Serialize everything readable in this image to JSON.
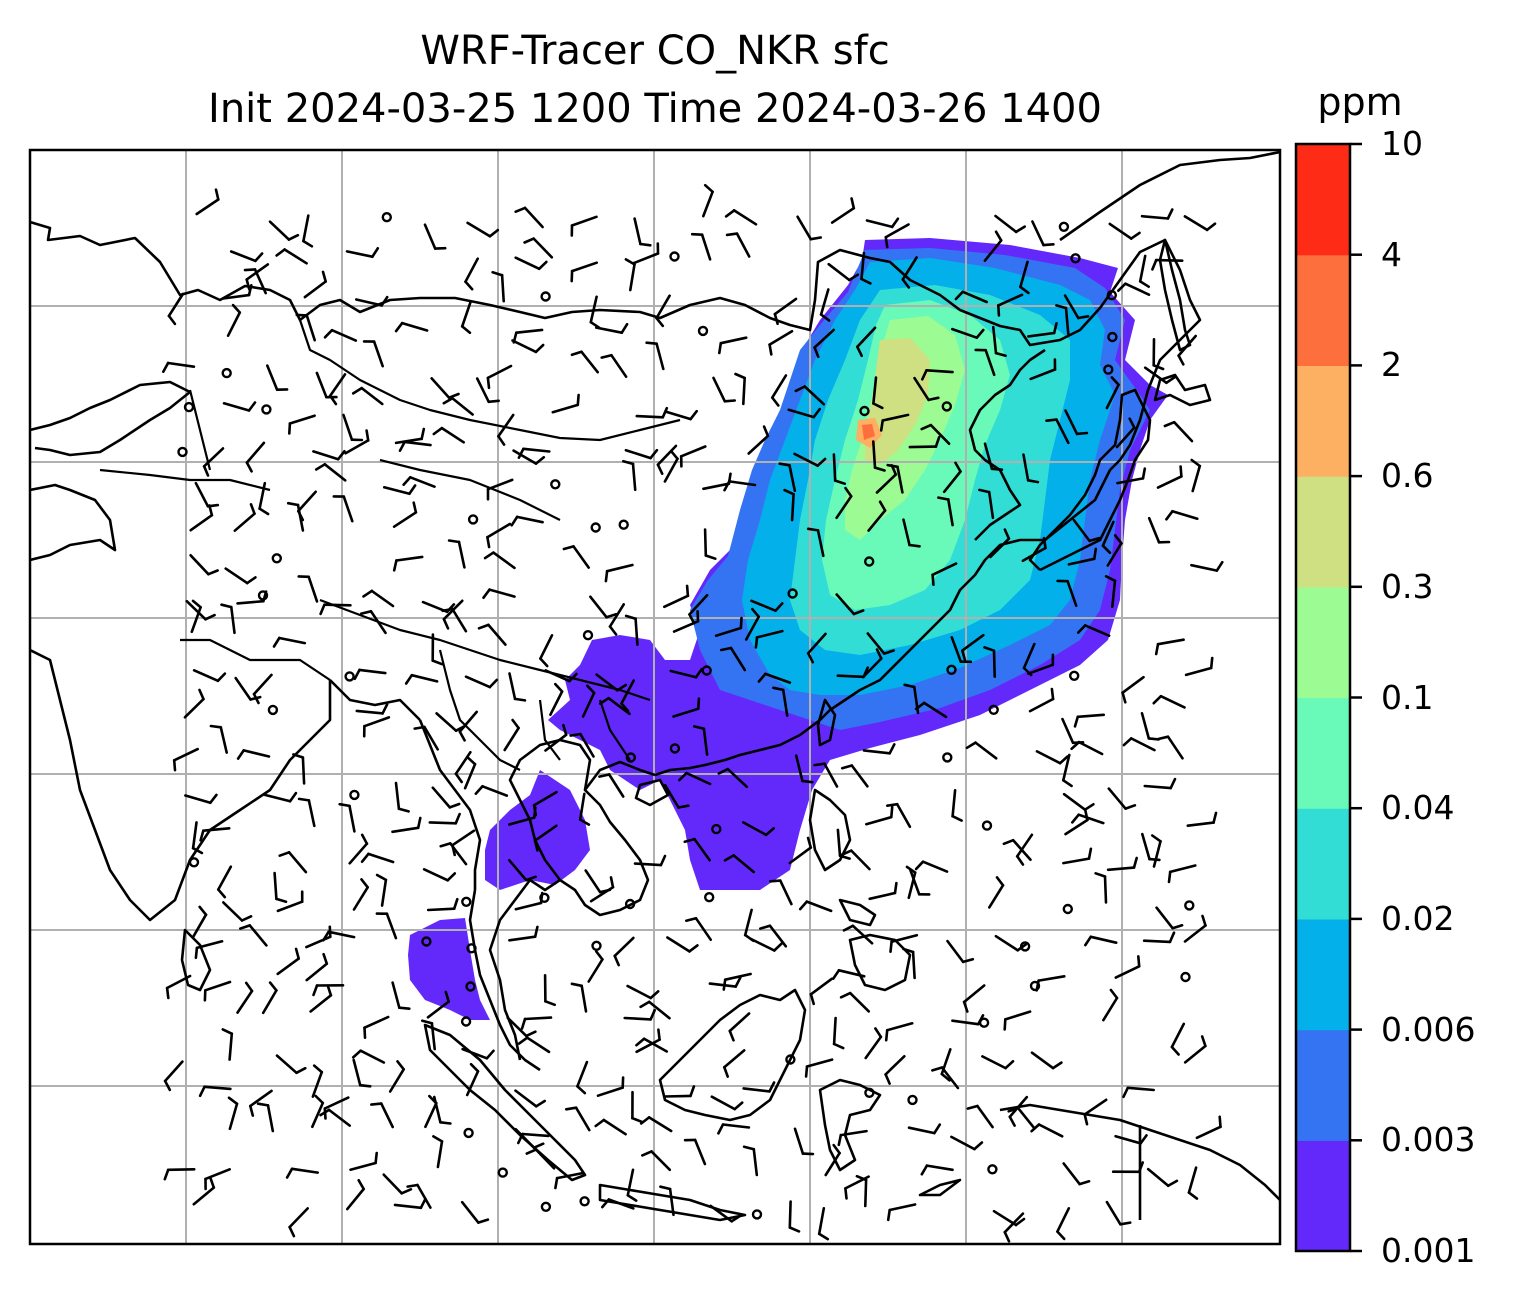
{
  "title": {
    "line1": "WRF-Tracer CO_NKR sfc",
    "line2": "Init 2024-03-25 1200 Time 2024-03-26 1400"
  },
  "colorbar": {
    "unit": "ppm",
    "levels": [
      "0.001",
      "0.003",
      "0.006",
      "0.02",
      "0.04",
      "0.1",
      "0.3",
      "0.6",
      "2",
      "4",
      "10"
    ],
    "colors": [
      "#6329fb",
      "#3474f3",
      "#04b0ea",
      "#32ddd6",
      "#69f9b8",
      "#9dfb94",
      "#cfe083",
      "#fdaf62",
      "#fd6f3d",
      "#fe2b16"
    ]
  },
  "map": {
    "variable": "CO_NKR tracer surface concentration",
    "overlay": "wind barbs",
    "land_color": "#ffffff",
    "coastline_color": "#000000",
    "gridline_color": "#b0b0b0"
  }
}
